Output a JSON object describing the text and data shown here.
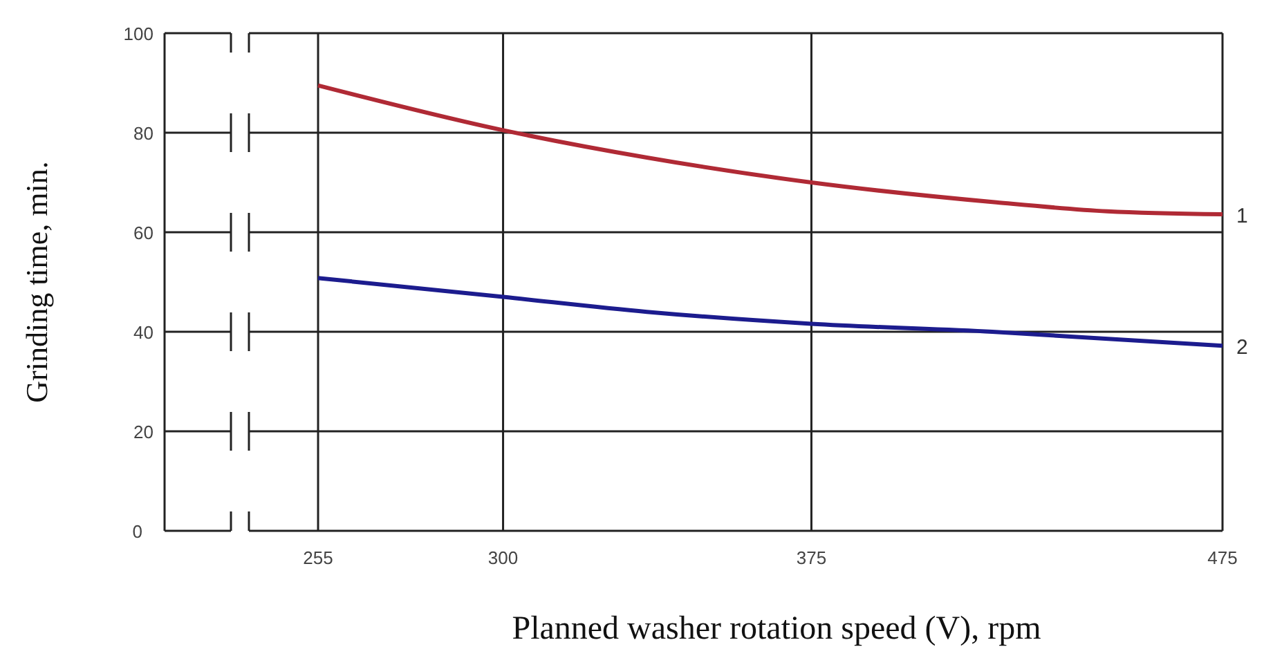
{
  "chart_data": {
    "type": "line",
    "xlabel": "Planned washer rotation speed (V), rpm",
    "ylabel": "Grinding time, min.",
    "xlim": [
      255,
      475
    ],
    "xticks": [
      255,
      300,
      375,
      475
    ],
    "ylim": [
      0,
      100
    ],
    "yticks": [
      0,
      20,
      40,
      60,
      80,
      100
    ],
    "grid": true,
    "legend": false,
    "series": [
      {
        "name": "1",
        "color": "#b02a35",
        "x": [
          255,
          300,
          335,
          375,
          420,
          447,
          475
        ],
        "values": [
          89.5,
          80.5,
          75,
          70,
          66,
          64.2,
          63.6
        ]
      },
      {
        "name": "2",
        "color": "#1c1c8e",
        "x": [
          255,
          300,
          335,
          375,
          419,
          475
        ],
        "values": [
          50.8,
          47,
          44,
          41.6,
          40,
          37.2
        ]
      }
    ]
  }
}
